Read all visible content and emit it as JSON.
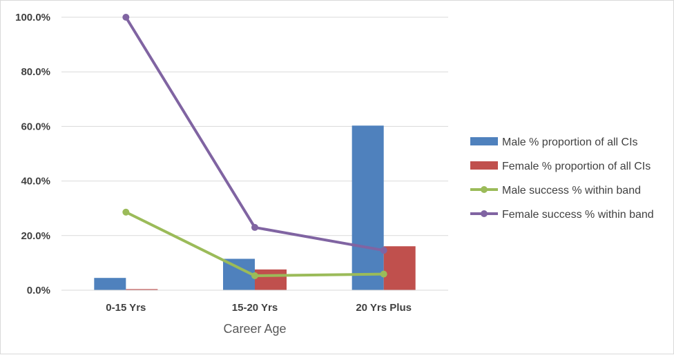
{
  "chart_data": {
    "type": "bar",
    "categories": [
      "0-15 Yrs",
      "15-20 Yrs",
      "20 Yrs Plus"
    ],
    "xlabel": "Career Age",
    "ylabel": "",
    "ylim": [
      0,
      100
    ],
    "y_ticks": [
      "0.0%",
      "20.0%",
      "40.0%",
      "60.0%",
      "80.0%",
      "100.0%"
    ],
    "grid": true,
    "legend_position": "right",
    "series": [
      {
        "name": "Male % proportion of all CIs",
        "kind": "bar",
        "color": "#4f81bd",
        "values": [
          4.5,
          11.5,
          60.3
        ]
      },
      {
        "name": "Female % proportion of all CIs",
        "kind": "bar",
        "color": "#c0504d",
        "values": [
          0.4,
          7.6,
          16.1
        ]
      },
      {
        "name": "Male success % within band",
        "kind": "line",
        "color": "#9bbb59",
        "values": [
          28.6,
          5.3,
          5.9
        ]
      },
      {
        "name": "Female success % within band",
        "kind": "line",
        "color": "#8064a2",
        "values": [
          100.0,
          23.0,
          14.6
        ]
      }
    ]
  }
}
